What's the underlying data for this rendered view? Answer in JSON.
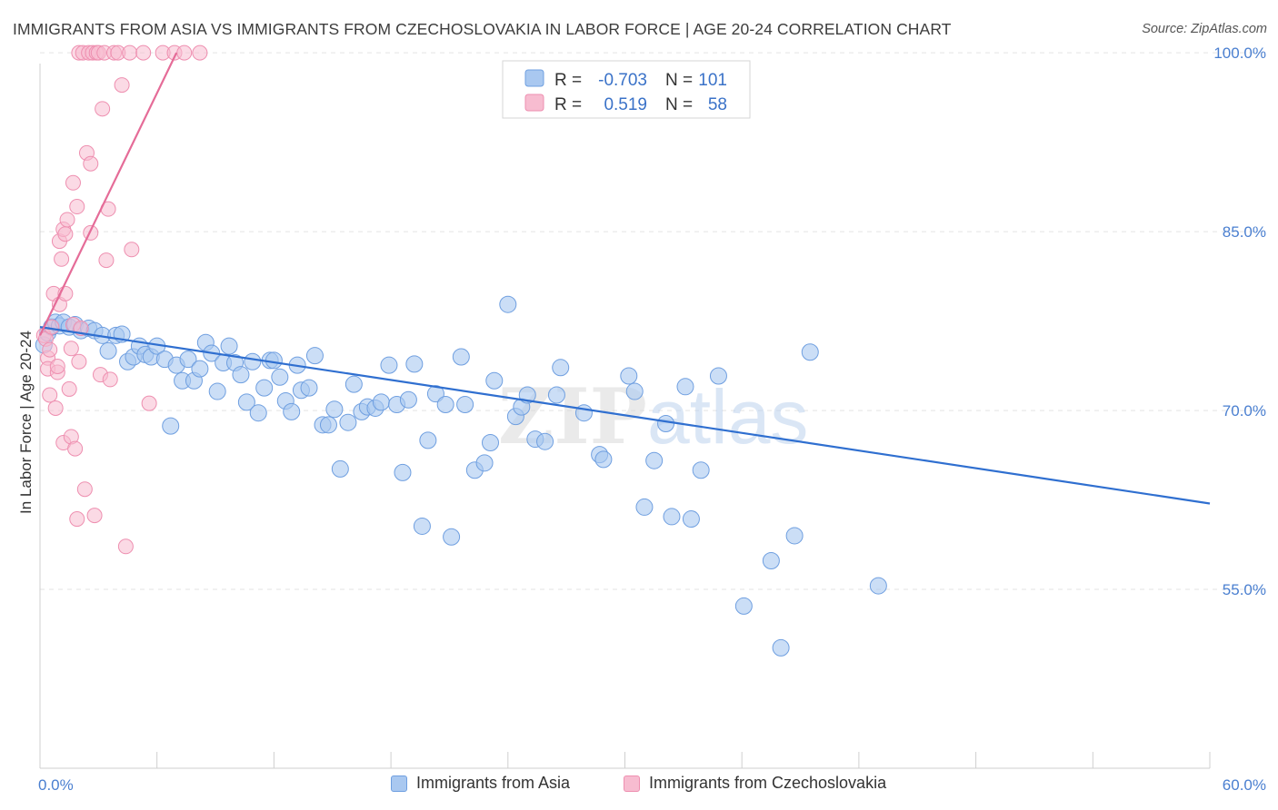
{
  "title": "IMMIGRANTS FROM ASIA VS IMMIGRANTS FROM CZECHOSLOVAKIA IN LABOR FORCE | AGE 20-24 CORRELATION CHART",
  "source": "Source: ZipAtlas.com",
  "colors": {
    "asia_fill": "#a9c8f0",
    "asia_stroke": "#6f9fe0",
    "asia_line": "#2f6fd0",
    "czech_fill": "#f7bcd0",
    "czech_stroke": "#ee8fb0",
    "czech_line": "#e56c98",
    "tick_label": "#4a7fd0",
    "grid": "#e3e3e3"
  },
  "legend": {
    "r_label": "R =",
    "n_label": "N =",
    "rows": [
      {
        "r": "-0.703",
        "n": "101"
      },
      {
        "r": "0.519",
        "n": "58"
      }
    ]
  },
  "chart_data": {
    "type": "scatter",
    "title": "IMMIGRANTS FROM ASIA VS IMMIGRANTS FROM CZECHOSLOVAKIA IN LABOR FORCE | AGE 20-24 CORRELATION CHART",
    "xlabel": "",
    "ylabel": "In Labor Force | Age 20-24",
    "xlim": [
      0,
      60
    ],
    "ylim": [
      40,
      101
    ],
    "x_tick_labels": [
      "0.0%",
      "60.0%"
    ],
    "y_ticks": [
      55,
      70,
      85,
      100
    ],
    "y_tick_labels": [
      "55.0%",
      "70.0%",
      "85.0%",
      "100.0%"
    ],
    "grid": true,
    "legend_placement": "top-center",
    "watermark": "ZIPatlas",
    "series": [
      {
        "name": "Immigrants from Asia",
        "r": -0.703,
        "n": 101,
        "trend": [
          [
            0.0,
            77.0
          ],
          [
            60.0,
            62.2
          ]
        ],
        "points": [
          [
            0.2,
            75.5
          ],
          [
            0.4,
            76.5
          ],
          [
            0.6,
            77.0
          ],
          [
            0.8,
            77.4
          ],
          [
            1.0,
            77.1
          ],
          [
            1.2,
            77.4
          ],
          [
            1.5,
            77.0
          ],
          [
            1.8,
            77.2
          ],
          [
            2.1,
            76.7
          ],
          [
            2.5,
            76.9
          ],
          [
            2.8,
            76.7
          ],
          [
            3.2,
            76.3
          ],
          [
            3.5,
            75.0
          ],
          [
            3.9,
            76.3
          ],
          [
            4.2,
            76.4
          ],
          [
            4.5,
            74.1
          ],
          [
            4.8,
            74.5
          ],
          [
            5.1,
            75.4
          ],
          [
            5.4,
            74.7
          ],
          [
            5.7,
            74.5
          ],
          [
            6.0,
            75.4
          ],
          [
            6.4,
            74.3
          ],
          [
            6.7,
            68.7
          ],
          [
            7.0,
            73.8
          ],
          [
            7.3,
            72.5
          ],
          [
            7.6,
            74.3
          ],
          [
            7.9,
            72.5
          ],
          [
            8.2,
            73.5
          ],
          [
            8.5,
            75.7
          ],
          [
            8.8,
            74.8
          ],
          [
            9.1,
            71.6
          ],
          [
            9.4,
            74.0
          ],
          [
            9.7,
            75.4
          ],
          [
            10.0,
            74.0
          ],
          [
            10.3,
            73.0
          ],
          [
            10.6,
            70.7
          ],
          [
            10.9,
            74.1
          ],
          [
            11.2,
            69.8
          ],
          [
            11.5,
            71.9
          ],
          [
            11.8,
            74.2
          ],
          [
            12.0,
            74.2
          ],
          [
            12.3,
            72.8
          ],
          [
            12.6,
            70.8
          ],
          [
            12.9,
            69.9
          ],
          [
            13.2,
            73.8
          ],
          [
            13.4,
            71.7
          ],
          [
            13.8,
            71.9
          ],
          [
            14.1,
            74.6
          ],
          [
            14.5,
            68.8
          ],
          [
            14.8,
            68.8
          ],
          [
            15.1,
            70.1
          ],
          [
            15.4,
            65.1
          ],
          [
            15.8,
            69.0
          ],
          [
            16.1,
            72.2
          ],
          [
            16.5,
            69.9
          ],
          [
            16.8,
            70.3
          ],
          [
            17.2,
            70.2
          ],
          [
            17.5,
            70.7
          ],
          [
            17.9,
            73.8
          ],
          [
            18.3,
            70.5
          ],
          [
            18.6,
            64.8
          ],
          [
            18.9,
            70.9
          ],
          [
            19.2,
            73.9
          ],
          [
            19.6,
            60.3
          ],
          [
            19.9,
            67.5
          ],
          [
            20.3,
            71.4
          ],
          [
            20.8,
            70.5
          ],
          [
            21.1,
            59.4
          ],
          [
            21.6,
            74.5
          ],
          [
            21.8,
            70.5
          ],
          [
            22.3,
            65.0
          ],
          [
            22.8,
            65.6
          ],
          [
            23.1,
            67.3
          ],
          [
            23.3,
            72.5
          ],
          [
            24.0,
            78.9
          ],
          [
            24.4,
            69.5
          ],
          [
            24.7,
            70.3
          ],
          [
            25.0,
            71.3
          ],
          [
            25.4,
            67.6
          ],
          [
            25.9,
            67.4
          ],
          [
            26.5,
            71.3
          ],
          [
            26.7,
            73.6
          ],
          [
            27.9,
            69.8
          ],
          [
            28.7,
            66.3
          ],
          [
            28.9,
            65.9
          ],
          [
            30.2,
            72.9
          ],
          [
            30.5,
            71.6
          ],
          [
            31.0,
            61.9
          ],
          [
            31.5,
            65.8
          ],
          [
            32.1,
            68.9
          ],
          [
            32.4,
            61.1
          ],
          [
            33.1,
            72.0
          ],
          [
            33.4,
            60.9
          ],
          [
            33.9,
            65.0
          ],
          [
            34.8,
            72.9
          ],
          [
            36.1,
            53.6
          ],
          [
            37.5,
            57.4
          ],
          [
            38.0,
            50.1
          ],
          [
            38.7,
            59.5
          ],
          [
            39.5,
            74.9
          ],
          [
            43.0,
            55.3
          ]
        ]
      },
      {
        "name": "Immigrants from Czechoslovakia",
        "r": 0.519,
        "n": 58,
        "trend": [
          [
            0.0,
            76.3
          ],
          [
            7.0,
            100.0
          ]
        ],
        "points": [
          [
            0.2,
            76.3
          ],
          [
            0.3,
            76.0
          ],
          [
            0.4,
            74.4
          ],
          [
            0.4,
            73.5
          ],
          [
            0.5,
            71.3
          ],
          [
            0.5,
            75.1
          ],
          [
            0.6,
            77.0
          ],
          [
            0.7,
            79.8
          ],
          [
            0.8,
            70.2
          ],
          [
            0.9,
            73.2
          ],
          [
            0.9,
            73.7
          ],
          [
            1.0,
            78.9
          ],
          [
            1.0,
            84.2
          ],
          [
            1.1,
            82.7
          ],
          [
            1.2,
            85.2
          ],
          [
            1.2,
            67.3
          ],
          [
            1.3,
            84.8
          ],
          [
            1.3,
            79.8
          ],
          [
            1.4,
            86.0
          ],
          [
            1.5,
            71.8
          ],
          [
            1.6,
            67.8
          ],
          [
            1.6,
            75.2
          ],
          [
            1.7,
            89.1
          ],
          [
            1.7,
            77.2
          ],
          [
            1.8,
            66.8
          ],
          [
            1.9,
            60.9
          ],
          [
            1.9,
            87.1
          ],
          [
            2.0,
            74.1
          ],
          [
            2.0,
            100.0
          ],
          [
            2.1,
            76.9
          ],
          [
            2.2,
            100.0
          ],
          [
            2.3,
            63.4
          ],
          [
            2.4,
            91.6
          ],
          [
            2.5,
            100.0
          ],
          [
            2.6,
            84.9
          ],
          [
            2.6,
            90.7
          ],
          [
            2.7,
            100.0
          ],
          [
            2.8,
            61.2
          ],
          [
            2.9,
            100.0
          ],
          [
            3.0,
            100.0
          ],
          [
            3.1,
            73.0
          ],
          [
            3.2,
            95.3
          ],
          [
            3.3,
            100.0
          ],
          [
            3.4,
            82.6
          ],
          [
            3.5,
            86.9
          ],
          [
            3.6,
            72.6
          ],
          [
            3.8,
            100.0
          ],
          [
            4.0,
            100.0
          ],
          [
            4.2,
            97.3
          ],
          [
            4.4,
            58.6
          ],
          [
            4.6,
            100.0
          ],
          [
            4.7,
            83.5
          ],
          [
            5.3,
            100.0
          ],
          [
            5.6,
            70.6
          ],
          [
            6.3,
            100.0
          ],
          [
            6.9,
            100.0
          ],
          [
            7.4,
            100.0
          ],
          [
            8.2,
            100.0
          ]
        ]
      }
    ]
  }
}
